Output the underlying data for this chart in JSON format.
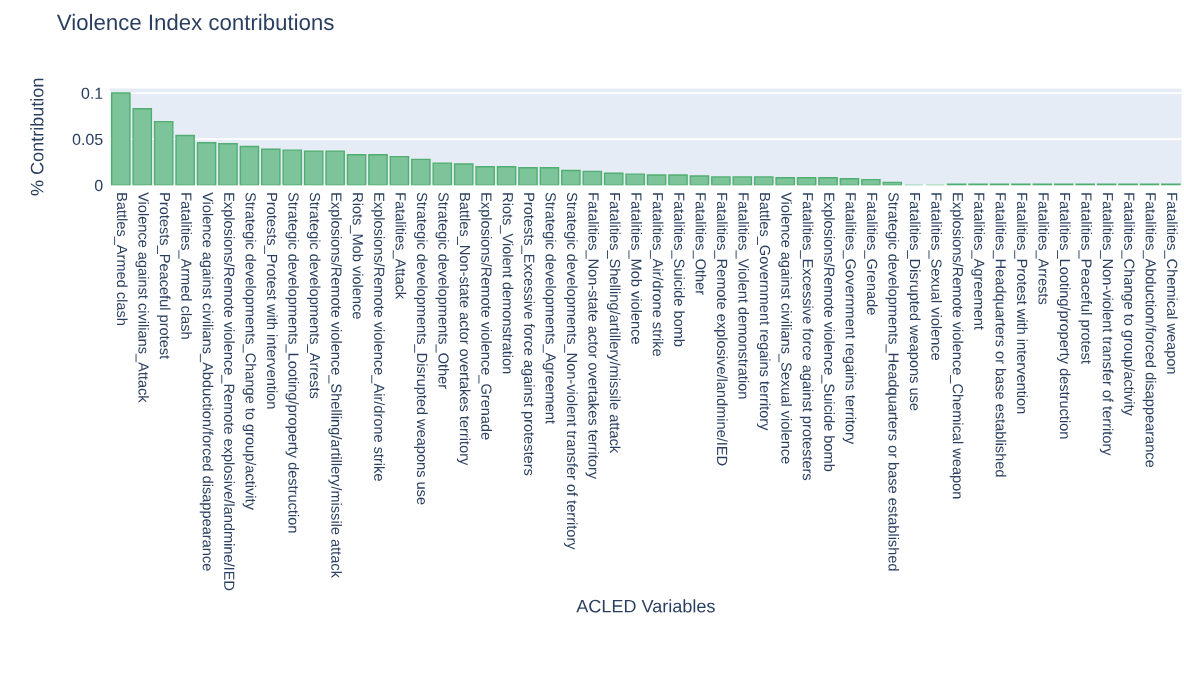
{
  "chart_data": {
    "type": "bar",
    "title": "Violence Index contributions",
    "xlabel": "ACLED Variables",
    "ylabel": "% Contribution",
    "categories": [
      "Battles_Armed clash",
      "Violence against civilians_Attack",
      "Protests_Peaceful protest",
      "Fatalities_Armed clash",
      "Violence against civilians_Abduction/forced disappearance",
      "Explosions/Remote violence_Remote explosive/landmine/IED",
      "Strategic developments_Change to group/activity",
      "Protests_Protest with intervention",
      "Strategic developments_Looting/property destruction",
      "Strategic developments_Arrests",
      "Explosions/Remote violence_Shelling/artillery/missile attack",
      "Riots_Mob violence",
      "Explosions/Remote violence_Air/drone strike",
      "Fatalities_Attack",
      "Strategic developments_Disrupted weapons use",
      "Strategic developments_Other",
      "Battles_Non-state actor overtakes territory",
      "Explosions/Remote violence_Grenade",
      "Riots_Violent demonstration",
      "Protests_Excessive force against protesters",
      "Strategic developments_Agreement",
      "Strategic developments_Non-violent transfer of territory",
      "Fatalities_Non-state actor overtakes territory",
      "Fatalities_Shelling/artillery/missile attack",
      "Fatalities_Mob violence",
      "Fatalities_Air/drone strike",
      "Fatalities_Suicide bomb",
      "Fatalities_Other",
      "Fatalities_Remote explosive/landmine/IED",
      "Fatalities_Violent demonstration",
      "Battles_Government regains territory",
      "Violence against civilians_Sexual violence",
      "Fatalities_Excessive force against protesters",
      "Explosions/Remote violence_Suicide bomb",
      "Fatalities_Government regains territory",
      "Fatalities_Grenade",
      "Strategic developments_Headquarters or base established",
      "Fatalities_Disrupted weapons use",
      "Fatalities_Sexual violence",
      "Explosions/Remote violence_Chemical weapon",
      "Fatalities_Agreement",
      "Fatalities_Headquarters or base established",
      "Fatalities_Protest with intervention",
      "Fatalities_Arrests",
      "Fatalities_Looting/property destruction",
      "Fatalities_Peaceful protest",
      "Fatalities_Non-violent transfer of territory",
      "Fatalities_Change to group/activity",
      "Fatalities_Abduction/forced disappearance",
      "Fatalities_Chemical weapon"
    ],
    "values": [
      0.1,
      0.083,
      0.069,
      0.054,
      0.046,
      0.045,
      0.042,
      0.039,
      0.038,
      0.037,
      0.037,
      0.033,
      0.033,
      0.031,
      0.028,
      0.024,
      0.023,
      0.02,
      0.02,
      0.019,
      0.019,
      0.016,
      0.015,
      0.013,
      0.012,
      0.011,
      0.011,
      0.01,
      0.009,
      0.009,
      0.009,
      0.008,
      0.008,
      0.008,
      0.007,
      0.006,
      0.003,
      0,
      0,
      0.001,
      0.001,
      0.001,
      0.001,
      0.001,
      0.001,
      0.001,
      0.001,
      0.001,
      0.001,
      0.001
    ],
    "color": "#7dc49a",
    "ylim": [
      0,
      0.105
    ],
    "yticks": [
      0,
      0.05,
      0.1
    ],
    "grid": "y"
  }
}
